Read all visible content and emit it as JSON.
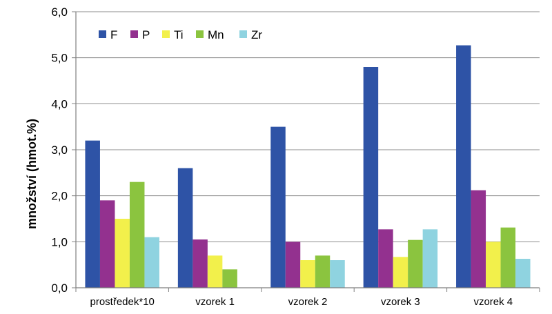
{
  "chart_data": {
    "type": "bar",
    "categories": [
      "prostředek*10",
      "vzorek 1",
      "vzorek 2",
      "vzorek 3",
      "vzorek 4"
    ],
    "series": [
      {
        "name": "F",
        "color": "#2E53A6",
        "values": [
          3.2,
          2.6,
          3.5,
          4.8,
          5.27
        ]
      },
      {
        "name": "P",
        "color": "#93318F",
        "values": [
          1.9,
          1.05,
          1.0,
          1.27,
          2.12
        ]
      },
      {
        "name": "Ti",
        "color": "#F2F04B",
        "values": [
          1.5,
          0.7,
          0.6,
          0.67,
          1.0
        ]
      },
      {
        "name": "Mn",
        "color": "#8BC43F",
        "values": [
          2.3,
          0.4,
          0.7,
          1.04,
          1.31
        ]
      },
      {
        "name": "Zr",
        "color": "#8FD3E0",
        "values": [
          1.1,
          null,
          0.6,
          1.27,
          0.63
        ]
      }
    ],
    "ylabel": "množství (hmot.%)",
    "ylim": [
      0,
      6
    ],
    "yticks": [
      "0,0",
      "1,0",
      "2,0",
      "3,0",
      "4,0",
      "5,0",
      "6,0"
    ],
    "grid": true,
    "legend_position": "top-left"
  }
}
